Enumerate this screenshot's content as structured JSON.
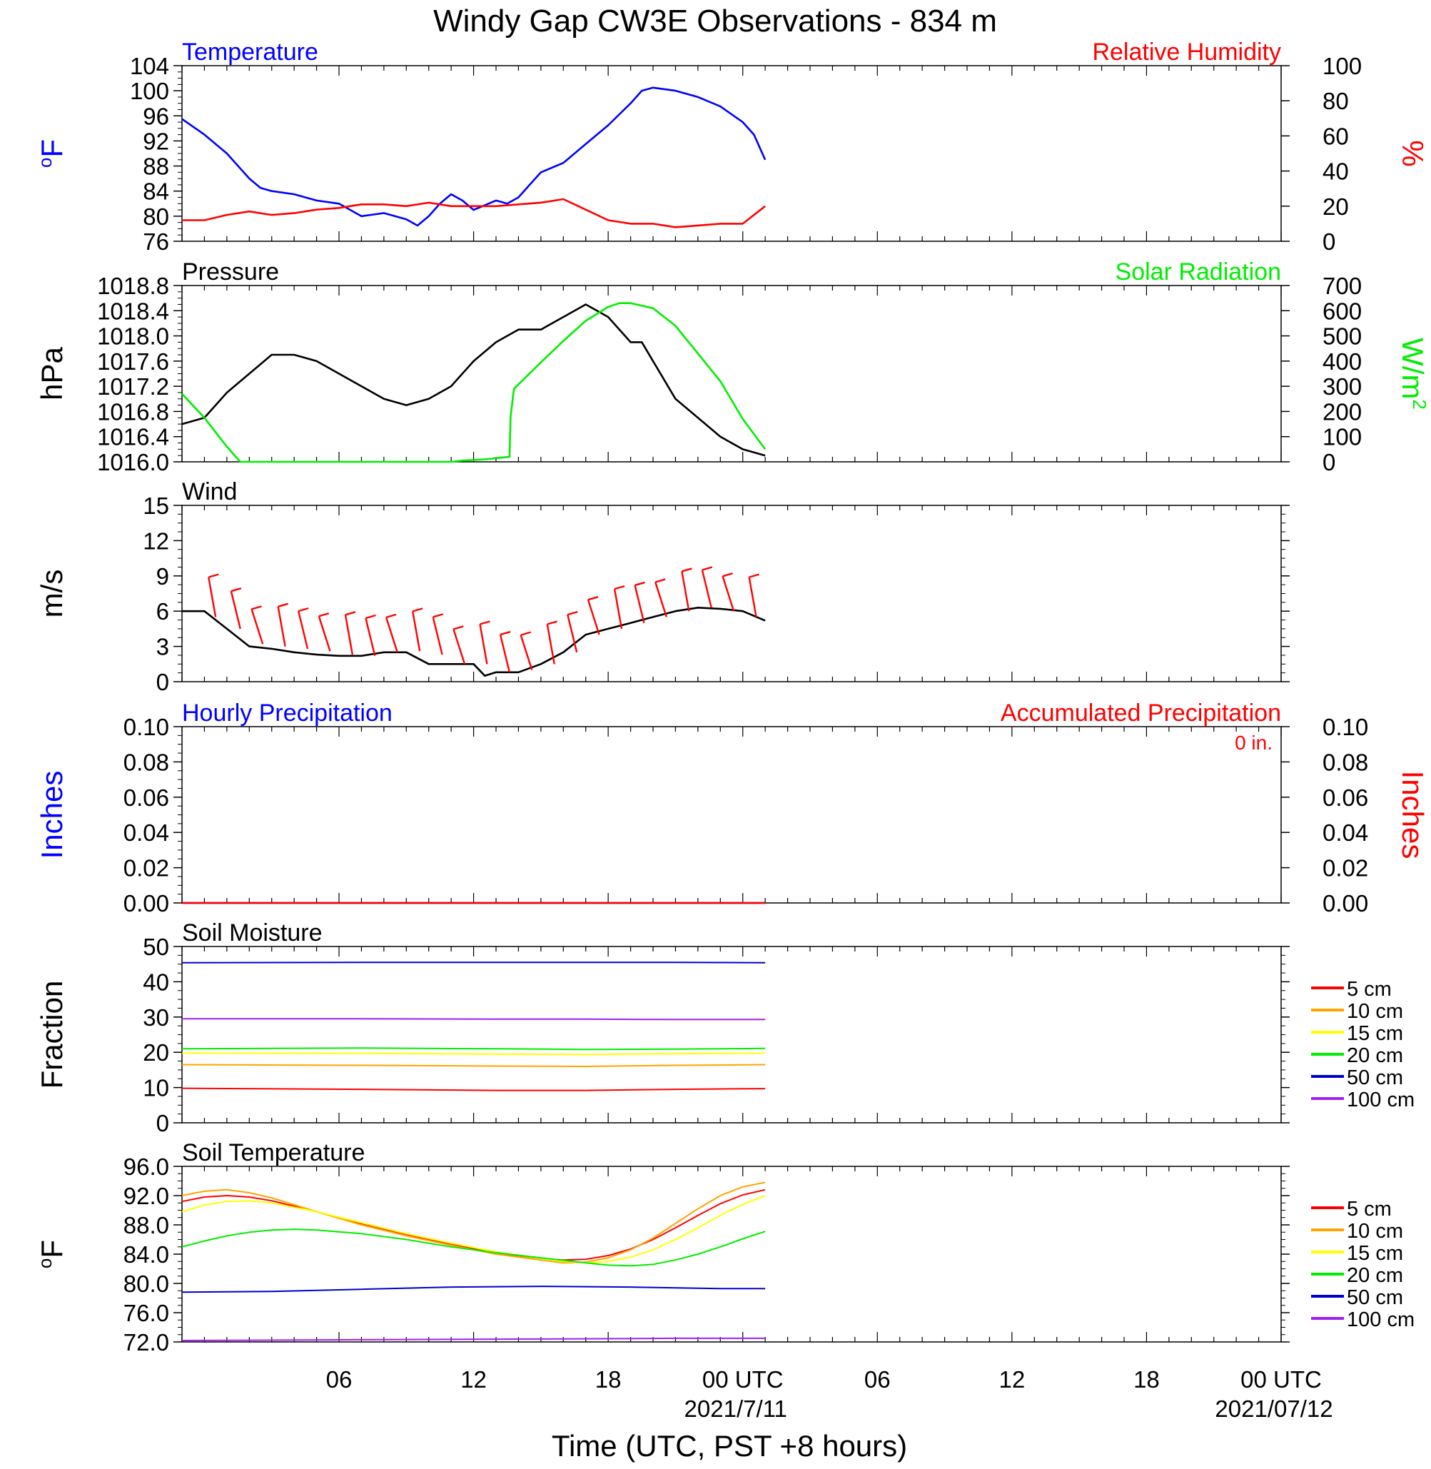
{
  "title": "Windy Gap CW3E Observations - 834 m",
  "x_axis": {
    "label": "Time (UTC, PST +8 hours)",
    "ticks": [
      "06",
      "12",
      "18",
      "00 UTC",
      "06",
      "12",
      "18",
      "00 UTC"
    ],
    "dates": [
      "2021/7/11",
      "2021/07/12"
    ]
  },
  "chart_data": [
    {
      "type": "line",
      "title_left": "Temperature",
      "title_right": "Relative Humidity",
      "ylabel_left": "oF",
      "ylabel_right": "%",
      "ylim_left": [
        76,
        104
      ],
      "ylim_right": [
        0,
        100
      ],
      "ticks_left": [
        "104",
        "100",
        "96",
        "92",
        "88",
        "84",
        "80",
        "76"
      ],
      "ticks_right": [
        "100",
        "80",
        "60",
        "40",
        "20",
        "0"
      ],
      "x_unit": "hours since 2021/7/10 01 UTC",
      "series": [
        {
          "axis": "left",
          "color": "#0000ff",
          "x": [
            0,
            1,
            2,
            3,
            3.5,
            4,
            5,
            6,
            7,
            8,
            9,
            10,
            10.5,
            11,
            11.5,
            12,
            12.5,
            13,
            14,
            14.5,
            15,
            15.5,
            16,
            17,
            18,
            19,
            20,
            20.5,
            21,
            22,
            23,
            24,
            25,
            25.5,
            26
          ],
          "y": [
            95.5,
            93,
            90,
            86,
            84.5,
            84,
            83.5,
            82.5,
            82,
            80,
            80.5,
            79.5,
            78.5,
            80,
            82,
            83.5,
            82.5,
            81,
            82.5,
            82,
            83,
            85,
            87,
            88.5,
            91.5,
            94.5,
            98,
            100,
            100.5,
            100,
            99,
            97.5,
            95,
            93,
            89
          ]
        },
        {
          "axis": "right",
          "color": "#ff0000",
          "x": [
            0,
            1,
            2,
            3,
            4,
            5,
            6,
            7,
            8,
            9,
            10,
            11,
            12,
            13,
            14,
            15,
            16,
            17,
            18,
            19,
            20,
            21,
            22,
            23,
            24,
            25,
            26
          ],
          "y": [
            12,
            12,
            15,
            17,
            15,
            16,
            18,
            19,
            21,
            21,
            20,
            22,
            20,
            20,
            20,
            21,
            22,
            24,
            18,
            12,
            10,
            10,
            8,
            9,
            10,
            10,
            20
          ]
        }
      ]
    },
    {
      "type": "line",
      "title_left": "Pressure",
      "title_right": "Solar Radiation",
      "ylabel_left": "hPa",
      "ylabel_right": "W/m2",
      "ylim_left": [
        1016.0,
        1018.8
      ],
      "ylim_right": [
        0,
        700
      ],
      "ticks_left": [
        "1018.8",
        "1018.4",
        "1018.0",
        "1017.6",
        "1017.2",
        "1016.8",
        "1016.4",
        "1016.0"
      ],
      "ticks_right": [
        "700",
        "600",
        "500",
        "400",
        "300",
        "200",
        "100",
        "0"
      ],
      "x_unit": "hours since 2021/7/10 01 UTC",
      "series": [
        {
          "axis": "left",
          "color": "#000000",
          "x": [
            0,
            1,
            2,
            3,
            4,
            5,
            6,
            7,
            8,
            9,
            10,
            11,
            12,
            13,
            14,
            15,
            16,
            17,
            18,
            18.5,
            19,
            20,
            20.5,
            21,
            22,
            23,
            24,
            25,
            26
          ],
          "y": [
            1016.6,
            1016.7,
            1017.1,
            1017.4,
            1017.7,
            1017.7,
            1017.6,
            1017.4,
            1017.2,
            1017.0,
            1016.9,
            1017.0,
            1017.2,
            1017.6,
            1017.9,
            1018.1,
            1018.1,
            1018.3,
            1018.5,
            1018.4,
            1018.3,
            1017.9,
            1017.9,
            1017.6,
            1017.0,
            1016.7,
            1016.4,
            1016.2,
            1016.1
          ]
        },
        {
          "axis": "right",
          "color": "#00ee00",
          "x": [
            0,
            1,
            2,
            2.6,
            3,
            5,
            8,
            10,
            12,
            12.5,
            13.5,
            14.6,
            14.65,
            14.8,
            16,
            17,
            18,
            19,
            19.5,
            20,
            21,
            22,
            23,
            24,
            25,
            26
          ],
          "y": [
            270,
            175,
            60,
            0,
            0,
            0,
            0,
            0,
            0,
            5,
            10,
            20,
            180,
            290,
            395,
            480,
            560,
            615,
            630,
            630,
            610,
            540,
            430,
            320,
            170,
            50
          ]
        }
      ]
    },
    {
      "type": "line",
      "title_left": "Wind",
      "ylabel_left": "m/s",
      "ylim_left": [
        0,
        15
      ],
      "ticks_left": [
        "15",
        "12",
        "9",
        "6",
        "3",
        "0"
      ],
      "x_unit": "hours since 2021/7/10 01 UTC",
      "series": [
        {
          "axis": "left",
          "color": "#000000",
          "x": [
            0,
            1,
            2,
            3,
            4,
            5,
            6,
            7,
            8,
            9,
            10,
            11,
            12,
            13,
            13.5,
            14,
            15,
            16,
            17,
            18,
            19,
            20,
            21,
            22,
            23,
            24,
            25,
            26
          ],
          "y": [
            6,
            6,
            4.5,
            3,
            2.8,
            2.5,
            2.3,
            2.2,
            2.2,
            2.5,
            2.5,
            1.5,
            1.5,
            1.5,
            0.5,
            0.8,
            0.8,
            1.5,
            2.5,
            4,
            4.5,
            5,
            5.5,
            6,
            6.3,
            6.2,
            6,
            5.2
          ]
        },
        {
          "axis": "left",
          "color": "#ff0000",
          "name": "wind barbs",
          "x": [
            1.5,
            2.6,
            3.6,
            4.6,
            5.6,
            6.6,
            7.6,
            8.6,
            9.6,
            10.6,
            11.6,
            12.6,
            13.6,
            14.6,
            15.6,
            16.6,
            17.6,
            18.6,
            19.6,
            20.6,
            21.6,
            22.6,
            23.6,
            24.6,
            25.6
          ],
          "y": [
            5.5,
            4.5,
            3.2,
            3,
            2.8,
            2.6,
            2.3,
            2.2,
            2.5,
            2.6,
            2.3,
            1.5,
            1.5,
            0.8,
            1,
            1.5,
            2.5,
            4,
            4.5,
            5,
            5.5,
            6,
            6.3,
            6,
            5.5
          ]
        }
      ]
    },
    {
      "type": "line",
      "title_left": "Hourly Precipitation",
      "title_right": "Accumulated Precipitation",
      "annotation": "0 in.",
      "ylabel_left": "Inches",
      "ylabel_right": "Inches",
      "ylim_left": [
        0,
        0.1
      ],
      "ylim_right": [
        0,
        0.1
      ],
      "ticks_left": [
        "0.10",
        "0.08",
        "0.06",
        "0.04",
        "0.02",
        "0.00"
      ],
      "ticks_right": [
        "0.10",
        "0.08",
        "0.06",
        "0.04",
        "0.02",
        "0.00"
      ],
      "x_unit": "hours since 2021/7/10 01 UTC",
      "series": [
        {
          "axis": "left",
          "color": "#0000ff",
          "x": [
            0,
            26
          ],
          "y": [
            0,
            0
          ]
        },
        {
          "axis": "right",
          "color": "#ff0000",
          "x": [
            0,
            26
          ],
          "y": [
            0,
            0
          ]
        }
      ]
    },
    {
      "type": "line",
      "title_left": "Soil Moisture",
      "ylabel_left": "Fraction",
      "ylim_left": [
        0,
        50
      ],
      "ticks_left": [
        "50",
        "40",
        "30",
        "20",
        "10",
        "0"
      ],
      "legend": [
        "5 cm",
        "10 cm",
        "15 cm",
        "20 cm",
        "50 cm",
        "100 cm"
      ],
      "x_unit": "hours since 2021/7/10 01 UTC",
      "series": [
        {
          "name": "5 cm",
          "color": "#ff0000",
          "x": [
            0,
            8,
            14,
            18,
            22,
            26
          ],
          "y": [
            9.8,
            9.5,
            9.2,
            9.2,
            9.5,
            9.7
          ]
        },
        {
          "name": "10 cm",
          "color": "#ffa500",
          "x": [
            0,
            8,
            14,
            18,
            22,
            26
          ],
          "y": [
            16.5,
            16.3,
            16.1,
            16.0,
            16.3,
            16.5
          ]
        },
        {
          "name": "15 cm",
          "color": "#ffff00",
          "x": [
            0,
            8,
            14,
            18,
            22,
            26
          ],
          "y": [
            19.8,
            19.7,
            19.5,
            19.4,
            19.6,
            19.8
          ]
        },
        {
          "name": "20 cm",
          "color": "#00ee00",
          "x": [
            0,
            8,
            14,
            18,
            22,
            26
          ],
          "y": [
            21.0,
            21.2,
            21.0,
            20.8,
            20.9,
            21.1
          ]
        },
        {
          "name": "50 cm",
          "color": "#0000cd",
          "x": [
            0,
            8,
            14,
            18,
            22,
            26
          ],
          "y": [
            45.4,
            45.5,
            45.5,
            45.5,
            45.5,
            45.4
          ]
        },
        {
          "name": "100 cm",
          "color": "#a020f0",
          "x": [
            0,
            8,
            14,
            18,
            22,
            26
          ],
          "y": [
            29.5,
            29.5,
            29.4,
            29.4,
            29.3,
            29.3
          ]
        }
      ]
    },
    {
      "type": "line",
      "title_left": "Soil Temperature",
      "ylabel_left": "oF",
      "ylim_left": [
        72,
        96
      ],
      "ticks_left": [
        "96.0",
        "92.0",
        "88.0",
        "84.0",
        "80.0",
        "76.0",
        "72.0"
      ],
      "legend": [
        "5 cm",
        "10 cm",
        "15 cm",
        "20 cm",
        "50 cm",
        "100 cm"
      ],
      "x_unit": "hours since 2021/7/10 01 UTC",
      "series": [
        {
          "name": "5 cm",
          "color": "#ff0000",
          "x": [
            0,
            1,
            2,
            3,
            4,
            6,
            8,
            10,
            12,
            14,
            16,
            17,
            18,
            19,
            20,
            21,
            22,
            23,
            24,
            25,
            26
          ],
          "y": [
            91.2,
            91.8,
            92.0,
            91.8,
            91.3,
            89.8,
            88.2,
            86.7,
            85.4,
            84.2,
            83.4,
            83.2,
            83.3,
            83.8,
            84.7,
            86.0,
            87.6,
            89.3,
            90.9,
            92.1,
            92.8
          ]
        },
        {
          "name": "10 cm",
          "color": "#ffa500",
          "x": [
            0,
            1,
            2,
            3,
            4,
            6,
            8,
            10,
            12,
            14,
            16,
            17,
            18,
            19,
            20,
            21,
            22,
            23,
            24,
            25,
            26
          ],
          "y": [
            92.0,
            92.6,
            92.8,
            92.4,
            91.7,
            89.8,
            88.0,
            86.5,
            85.2,
            84.0,
            83.2,
            82.8,
            82.9,
            83.5,
            84.6,
            86.2,
            88.2,
            90.2,
            92.0,
            93.2,
            93.8
          ]
        },
        {
          "name": "15 cm",
          "color": "#ffff00",
          "x": [
            0,
            1,
            2,
            3,
            4,
            6,
            8,
            10,
            12,
            14,
            16,
            17,
            18,
            19,
            20,
            21,
            22,
            23,
            24,
            25,
            26
          ],
          "y": [
            89.8,
            90.7,
            91.2,
            91.3,
            91.0,
            89.8,
            88.3,
            86.8,
            85.5,
            84.3,
            83.4,
            83.0,
            82.8,
            83.0,
            83.6,
            84.6,
            86.0,
            87.6,
            89.3,
            90.8,
            92.0
          ]
        },
        {
          "name": "20 cm",
          "color": "#00ee00",
          "x": [
            0,
            1,
            2,
            3,
            4,
            5,
            6,
            8,
            10,
            12,
            14,
            16,
            18,
            19,
            20,
            21,
            22,
            23,
            24,
            25,
            26
          ],
          "y": [
            85.0,
            85.8,
            86.5,
            87.0,
            87.3,
            87.4,
            87.3,
            86.8,
            86.0,
            85.0,
            84.2,
            83.5,
            82.8,
            82.5,
            82.4,
            82.6,
            83.2,
            84.0,
            85.0,
            86.1,
            87.1
          ]
        },
        {
          "name": "50 cm",
          "color": "#0000cd",
          "x": [
            0,
            4,
            8,
            12,
            16,
            20,
            24,
            26
          ],
          "y": [
            78.8,
            78.9,
            79.2,
            79.5,
            79.6,
            79.5,
            79.3,
            79.3
          ]
        },
        {
          "name": "100 cm",
          "color": "#a020f0",
          "x": [
            0,
            8,
            16,
            22,
            26
          ],
          "y": [
            72.2,
            72.3,
            72.4,
            72.5,
            72.5
          ]
        }
      ]
    }
  ]
}
